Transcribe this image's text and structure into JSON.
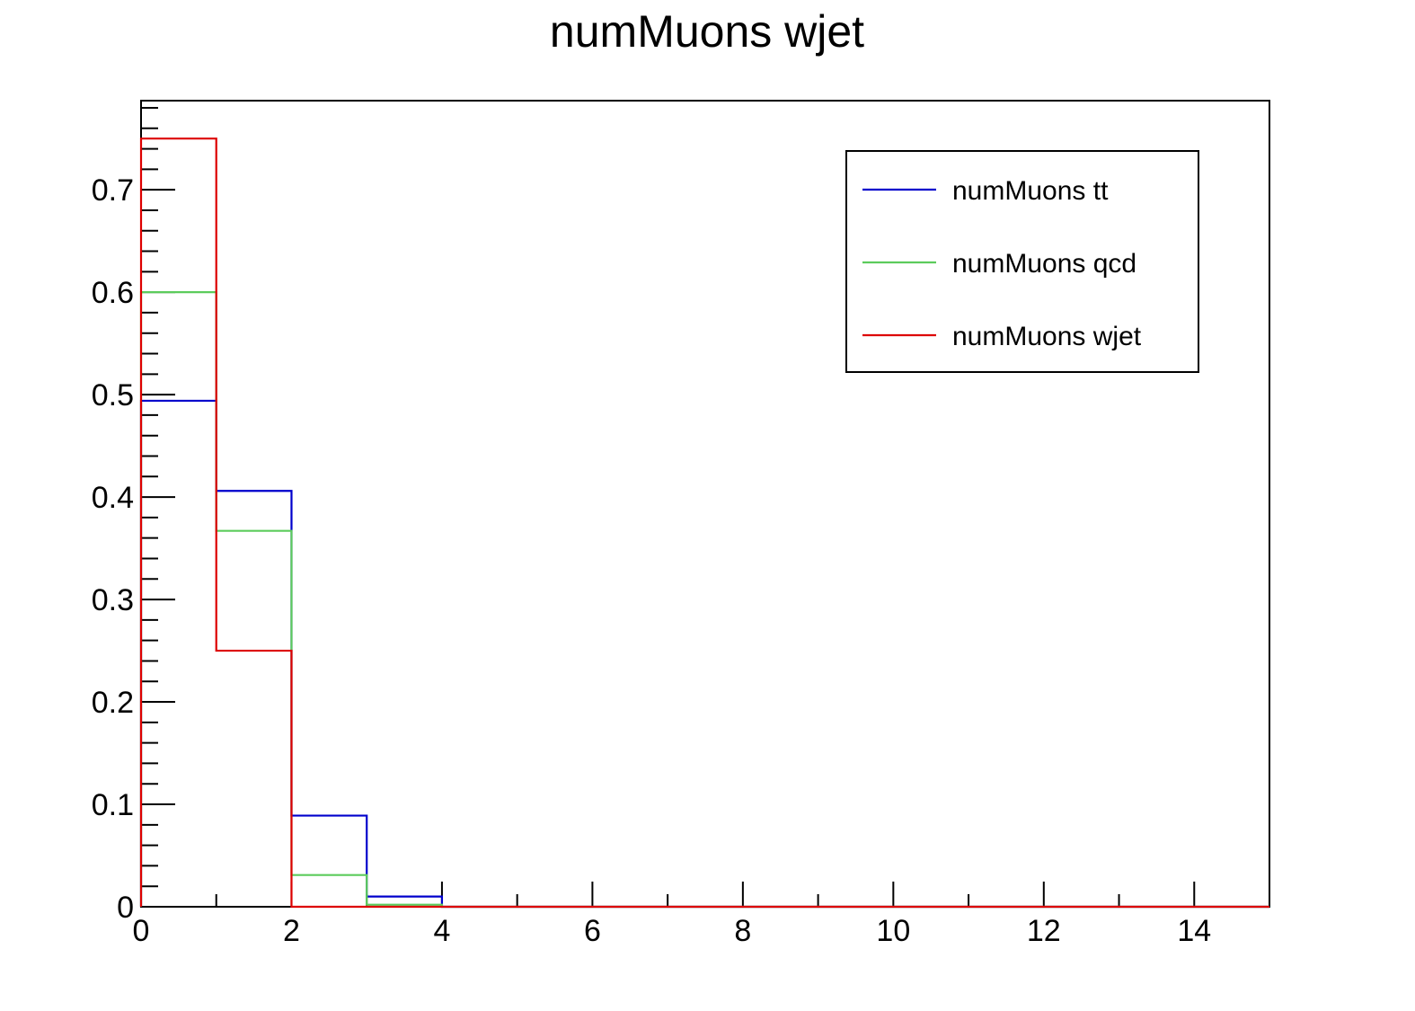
{
  "chart_data": {
    "type": "histogram",
    "title": "numMuons wjet",
    "xlabel": "",
    "ylabel": "",
    "xlim": [
      0,
      15
    ],
    "ylim": [
      0,
      0.787
    ],
    "bin_width": 1,
    "x_ticks": [
      0,
      2,
      4,
      6,
      8,
      10,
      12,
      14
    ],
    "x_tick_labels": [
      "0",
      "2",
      "4",
      "6",
      "8",
      "10",
      "12",
      "14"
    ],
    "y_ticks": [
      0,
      0.1,
      0.2,
      0.3,
      0.4,
      0.5,
      0.6,
      0.7
    ],
    "y_tick_labels": [
      "0",
      "0.1",
      "0.2",
      "0.3",
      "0.4",
      "0.5",
      "0.6",
      "0.7"
    ],
    "grid": false,
    "legend_position": "top-right",
    "series": [
      {
        "name": "numMuons tt",
        "color": "#0000cc",
        "values": [
          0.494,
          0.406,
          0.089,
          0.01,
          0,
          0,
          0,
          0,
          0,
          0,
          0,
          0,
          0,
          0,
          0
        ]
      },
      {
        "name": "numMuons qcd",
        "color": "#5ccc5c",
        "values": [
          0.6,
          0.367,
          0.031,
          0.002,
          0,
          0,
          0,
          0,
          0,
          0,
          0,
          0,
          0,
          0,
          0
        ]
      },
      {
        "name": "numMuons wjet",
        "color": "#dd0000",
        "values": [
          0.75,
          0.25,
          0,
          0,
          0,
          0,
          0,
          0,
          0,
          0,
          0,
          0,
          0,
          0,
          0
        ]
      }
    ]
  }
}
